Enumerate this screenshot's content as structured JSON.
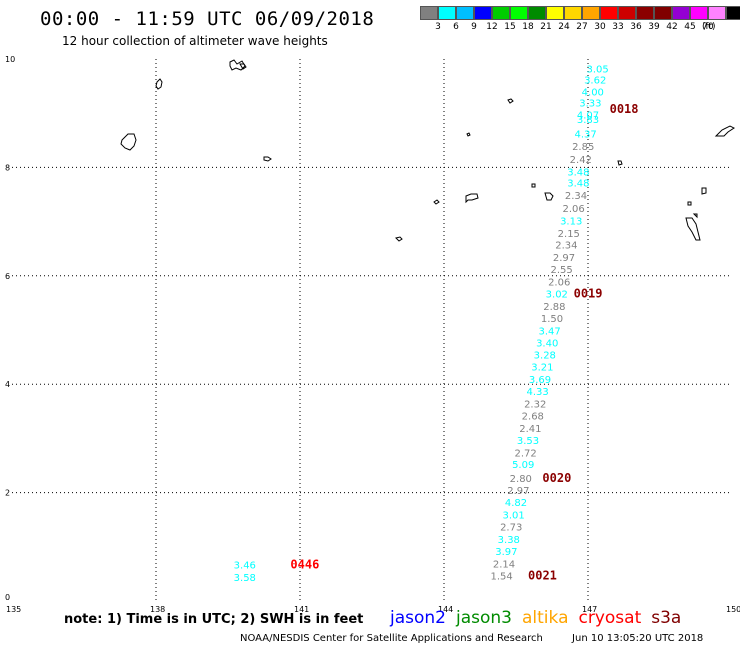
{
  "title": "00:00 - 11:59 UTC 06/09/2018",
  "subtitle": "12 hour collection of altimeter wave heights",
  "legend": {
    "colors": [
      "#808080",
      "#00ffff",
      "#00bfff",
      "#0000ff",
      "#00cd00",
      "#00ff00",
      "#008b00",
      "#ffff00",
      "#ffd700",
      "#ffa500",
      "#ff0000",
      "#cd0000",
      "#8b0000",
      "#800000",
      "#9400d3",
      "#ff00ff",
      "#ff82ff",
      "#000000"
    ],
    "labels": [
      "3",
      "6",
      "9",
      "12",
      "15",
      "18",
      "21",
      "24",
      "27",
      "30",
      "33",
      "36",
      "39",
      "42",
      "45",
      "70"
    ],
    "unit": "(ft)"
  },
  "chart_data": {
    "type": "scatter",
    "xlim": [
      135,
      150
    ],
    "ylim": [
      0,
      10
    ],
    "x_ticks": [
      "135",
      "138",
      "141",
      "144",
      "147",
      "150"
    ],
    "y_ticks": [
      "0",
      "2",
      "4",
      "6",
      "8",
      "10"
    ],
    "grid": true,
    "observations": [
      {
        "lon": 147.2,
        "lat": 9.75,
        "swh": "3.05",
        "color": "#00ffff"
      },
      {
        "lon": 147.15,
        "lat": 9.55,
        "swh": "3.62",
        "color": "#00ffff"
      },
      {
        "lon": 147.1,
        "lat": 9.33,
        "swh": "4.00",
        "color": "#00ffff"
      },
      {
        "lon": 147.05,
        "lat": 9.12,
        "swh": "3.33",
        "color": "#00ffff"
      },
      {
        "lon": 147.0,
        "lat": 8.9,
        "swh": "4.07",
        "color": "#00ffff"
      },
      {
        "lon": 147.0,
        "lat": 8.82,
        "swh": "3.83",
        "color": "#00ffff"
      },
      {
        "lon": 146.95,
        "lat": 8.55,
        "swh": "4.37",
        "color": "#00ffff"
      },
      {
        "lon": 146.9,
        "lat": 8.32,
        "swh": "2.85",
        "color": "#808080"
      },
      {
        "lon": 146.85,
        "lat": 8.08,
        "swh": "2.42",
        "color": "#808080"
      },
      {
        "lon": 146.8,
        "lat": 7.85,
        "swh": "3.48",
        "color": "#00ffff"
      },
      {
        "lon": 146.8,
        "lat": 7.65,
        "swh": "3.48",
        "color": "#00ffff"
      },
      {
        "lon": 146.75,
        "lat": 7.42,
        "swh": "2.34",
        "color": "#808080"
      },
      {
        "lon": 146.7,
        "lat": 7.18,
        "swh": "2.06",
        "color": "#808080"
      },
      {
        "lon": 146.65,
        "lat": 6.95,
        "swh": "3.13",
        "color": "#00ffff"
      },
      {
        "lon": 146.6,
        "lat": 6.72,
        "swh": "2.15",
        "color": "#808080"
      },
      {
        "lon": 146.55,
        "lat": 6.5,
        "swh": "2.34",
        "color": "#808080"
      },
      {
        "lon": 146.5,
        "lat": 6.27,
        "swh": "2.97",
        "color": "#808080"
      },
      {
        "lon": 146.45,
        "lat": 6.05,
        "swh": "2.55",
        "color": "#808080"
      },
      {
        "lon": 146.4,
        "lat": 5.82,
        "swh": "2.06",
        "color": "#808080"
      },
      {
        "lon": 146.35,
        "lat": 5.6,
        "swh": "3.02",
        "color": "#00ffff"
      },
      {
        "lon": 146.3,
        "lat": 5.37,
        "swh": "2.88",
        "color": "#808080"
      },
      {
        "lon": 146.25,
        "lat": 5.15,
        "swh": "1.50",
        "color": "#808080"
      },
      {
        "lon": 146.2,
        "lat": 4.92,
        "swh": "3.47",
        "color": "#00ffff"
      },
      {
        "lon": 146.15,
        "lat": 4.7,
        "swh": "3.40",
        "color": "#00ffff"
      },
      {
        "lon": 146.1,
        "lat": 4.47,
        "swh": "3.28",
        "color": "#00ffff"
      },
      {
        "lon": 146.05,
        "lat": 4.25,
        "swh": "3.21",
        "color": "#00ffff"
      },
      {
        "lon": 146.0,
        "lat": 4.02,
        "swh": "3.69",
        "color": "#00ffff"
      },
      {
        "lon": 145.95,
        "lat": 3.8,
        "swh": "4.33",
        "color": "#00ffff"
      },
      {
        "lon": 145.9,
        "lat": 3.57,
        "swh": "2.32",
        "color": "#808080"
      },
      {
        "lon": 145.85,
        "lat": 3.35,
        "swh": "2.68",
        "color": "#808080"
      },
      {
        "lon": 145.8,
        "lat": 3.12,
        "swh": "2.41",
        "color": "#808080"
      },
      {
        "lon": 145.75,
        "lat": 2.9,
        "swh": "3.53",
        "color": "#00ffff"
      },
      {
        "lon": 145.7,
        "lat": 2.67,
        "swh": "2.72",
        "color": "#808080"
      },
      {
        "lon": 145.65,
        "lat": 2.45,
        "swh": "5.09",
        "color": "#00ffff"
      },
      {
        "lon": 145.6,
        "lat": 2.2,
        "swh": "2.80",
        "color": "#808080"
      },
      {
        "lon": 145.55,
        "lat": 1.97,
        "swh": "2.97",
        "color": "#808080"
      },
      {
        "lon": 145.5,
        "lat": 1.75,
        "swh": "4.82",
        "color": "#00ffff"
      },
      {
        "lon": 145.45,
        "lat": 1.52,
        "swh": "3.01",
        "color": "#00ffff"
      },
      {
        "lon": 145.4,
        "lat": 1.3,
        "swh": "2.73",
        "color": "#808080"
      },
      {
        "lon": 145.35,
        "lat": 1.07,
        "swh": "3.38",
        "color": "#00ffff"
      },
      {
        "lon": 145.3,
        "lat": 0.85,
        "swh": "3.97",
        "color": "#00ffff"
      },
      {
        "lon": 145.25,
        "lat": 0.62,
        "swh": "2.14",
        "color": "#808080"
      },
      {
        "lon": 145.2,
        "lat": 0.4,
        "swh": "1.54",
        "color": "#808080"
      },
      {
        "lon": 139.85,
        "lat": 0.6,
        "swh": "3.46",
        "color": "#00ffff"
      },
      {
        "lon": 139.85,
        "lat": 0.37,
        "swh": "3.58",
        "color": "#00ffff"
      }
    ],
    "time_labels": [
      {
        "lon": 147.45,
        "lat": 9.0,
        "text": "0018",
        "color": "#8b0000"
      },
      {
        "lon": 146.7,
        "lat": 5.6,
        "text": "0019",
        "color": "#8b0000"
      },
      {
        "lon": 146.05,
        "lat": 2.2,
        "text": "0020",
        "color": "#8b0000"
      },
      {
        "lon": 145.75,
        "lat": 0.4,
        "text": "0021",
        "color": "#8b0000"
      },
      {
        "lon": 140.8,
        "lat": 0.6,
        "text": "0446",
        "color": "#ff0000"
      }
    ]
  },
  "note": "note: 1) Time is in UTC; 2) SWH is in feet",
  "satellites": [
    {
      "name": "jason2",
      "color": "#0000ff"
    },
    {
      "name": "jason3",
      "color": "#008b00"
    },
    {
      "name": "altika",
      "color": "#ffa500"
    },
    {
      "name": "cryosat",
      "color": "#ff0000"
    },
    {
      "name": "s3a",
      "color": "#800000"
    }
  ],
  "footer": {
    "credit": "NOAA/NESDIS Center for Satellite Applications and Research",
    "timestamp": "Jun 10 13:05:20 UTC 2018"
  }
}
